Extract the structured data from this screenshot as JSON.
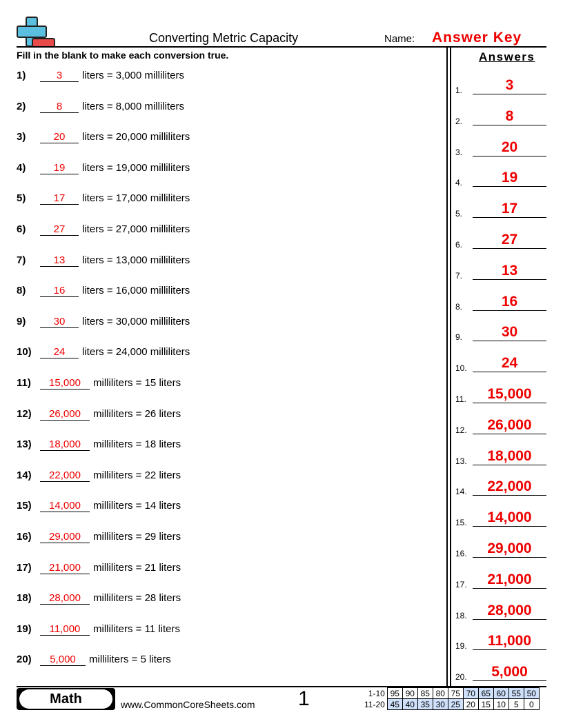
{
  "header": {
    "title": "Converting Metric Capacity",
    "name_label": "Name:",
    "name_value": "Answer Key",
    "instructions": "Fill in the blank to make each conversion true.",
    "answers_heading": "Answers"
  },
  "problems": [
    {
      "num": "1)",
      "answer": "3",
      "text": "liters = 3,000 milliliters"
    },
    {
      "num": "2)",
      "answer": "8",
      "text": "liters = 8,000 milliliters"
    },
    {
      "num": "3)",
      "answer": "20",
      "text": "liters = 20,000 milliliters"
    },
    {
      "num": "4)",
      "answer": "19",
      "text": "liters = 19,000 milliliters"
    },
    {
      "num": "5)",
      "answer": "17",
      "text": "liters = 17,000 milliliters"
    },
    {
      "num": "6)",
      "answer": "27",
      "text": "liters = 27,000 milliliters"
    },
    {
      "num": "7)",
      "answer": "13",
      "text": "liters = 13,000 milliliters"
    },
    {
      "num": "8)",
      "answer": "16",
      "text": "liters = 16,000 milliliters"
    },
    {
      "num": "9)",
      "answer": "30",
      "text": "liters = 30,000 milliliters"
    },
    {
      "num": "10)",
      "answer": "24",
      "text": "liters = 24,000 milliliters"
    },
    {
      "num": "11)",
      "answer": "15,000",
      "text": "milliliters = 15 liters"
    },
    {
      "num": "12)",
      "answer": "26,000",
      "text": "milliliters = 26 liters"
    },
    {
      "num": "13)",
      "answer": "18,000",
      "text": "milliliters = 18 liters"
    },
    {
      "num": "14)",
      "answer": "22,000",
      "text": "milliliters = 22 liters"
    },
    {
      "num": "15)",
      "answer": "14,000",
      "text": "milliliters = 14 liters"
    },
    {
      "num": "16)",
      "answer": "29,000",
      "text": "milliliters = 29 liters"
    },
    {
      "num": "17)",
      "answer": "21,000",
      "text": "milliliters = 21 liters"
    },
    {
      "num": "18)",
      "answer": "28,000",
      "text": "milliliters = 28 liters"
    },
    {
      "num": "19)",
      "answer": "11,000",
      "text": "milliliters = 11 liters"
    },
    {
      "num": "20)",
      "answer": "5,000",
      "text": "milliliters = 5 liters"
    }
  ],
  "answer_key": [
    {
      "num": "1.",
      "value": "3"
    },
    {
      "num": "2.",
      "value": "8"
    },
    {
      "num": "3.",
      "value": "20"
    },
    {
      "num": "4.",
      "value": "19"
    },
    {
      "num": "5.",
      "value": "17"
    },
    {
      "num": "6.",
      "value": "27"
    },
    {
      "num": "7.",
      "value": "13"
    },
    {
      "num": "8.",
      "value": "16"
    },
    {
      "num": "9.",
      "value": "30"
    },
    {
      "num": "10.",
      "value": "24"
    },
    {
      "num": "11.",
      "value": "15,000"
    },
    {
      "num": "12.",
      "value": "26,000"
    },
    {
      "num": "13.",
      "value": "18,000"
    },
    {
      "num": "14.",
      "value": "22,000"
    },
    {
      "num": "15.",
      "value": "14,000"
    },
    {
      "num": "16.",
      "value": "29,000"
    },
    {
      "num": "17.",
      "value": "21,000"
    },
    {
      "num": "18.",
      "value": "28,000"
    },
    {
      "num": "19.",
      "value": "11,000"
    },
    {
      "num": "20.",
      "value": "5,000"
    }
  ],
  "footer": {
    "subject": "Math",
    "website": "www.CommonCoreSheets.com",
    "page_number": "1",
    "score_rows": [
      {
        "label": "1-10",
        "scores": [
          "95",
          "90",
          "85",
          "80",
          "75",
          "70",
          "65",
          "60",
          "55",
          "50"
        ],
        "highlight": [
          false,
          false,
          false,
          false,
          false,
          true,
          true,
          true,
          true,
          true
        ]
      },
      {
        "label": "11-20",
        "scores": [
          "45",
          "40",
          "35",
          "30",
          "25",
          "20",
          "15",
          "10",
          "5",
          "0"
        ],
        "highlight": [
          true,
          true,
          true,
          true,
          true,
          false,
          false,
          false,
          false,
          false
        ]
      }
    ]
  },
  "colors": {
    "answer_red": "#ee0000",
    "logo_blue": "#5bbfe0",
    "logo_red": "#e84a4a",
    "score_highlight": "#cfe0fb"
  }
}
